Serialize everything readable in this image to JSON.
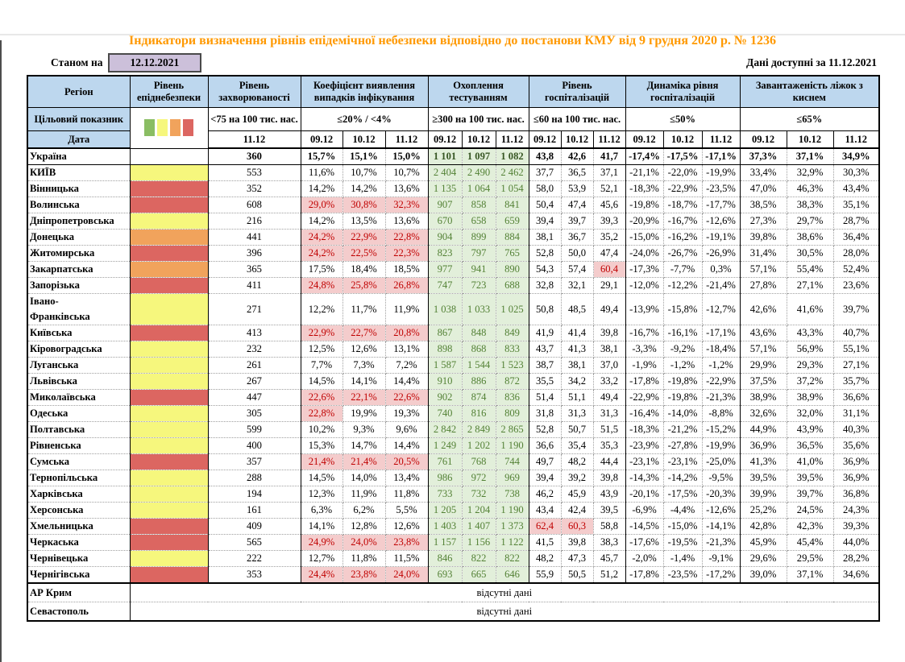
{
  "title": "Індикатори визначення рівнів епідемічної небезпеки відповідно до постанови КМУ від 9 грудня 2020 р. № 1236",
  "meta": {
    "stanom_label": "Станом на",
    "stanom_date": "12.12.2021",
    "available_label": "Дані доступні за 11.12.2021"
  },
  "header": {
    "region_label": "Регіон",
    "target_label": "Цільовий показник",
    "date_label": "Дата",
    "legend_colors": [
      "#8abd63",
      "#f6f77d",
      "#f1a35c",
      "#dc6661"
    ],
    "groups": [
      {
        "label": "Рівень епіднебезпеки",
        "target": "",
        "dates": []
      },
      {
        "label": "Рівень захворюваності",
        "target": "<75 на 100 тис. нас.",
        "dates": [
          "11.12"
        ]
      },
      {
        "label": "Коефіцієнт виявлення випадків інфікування",
        "target": "≤20% / <4%",
        "dates": [
          "09.12",
          "10.12",
          "11.12"
        ]
      },
      {
        "label": "Охоплення тестуванням",
        "target": "≥300 на 100 тис. нас.",
        "dates": [
          "09.12",
          "10.12",
          "11.12"
        ]
      },
      {
        "label": "Рівень госпіталізацій",
        "target": "≤60 на 100 тис. нас.",
        "dates": [
          "09.12",
          "10.12",
          "11.12"
        ]
      },
      {
        "label": "Динаміка рівня госпіталізацій",
        "target": "≤50%",
        "dates": [
          "09.12",
          "10.12",
          "11.12"
        ]
      },
      {
        "label": "Завантаженість ліжок з киснем",
        "target": "≤65%",
        "dates": [
          "09.12",
          "10.12",
          "11.12"
        ]
      }
    ]
  },
  "table": {
    "risk_colors": {
      "yellow": "#f6f77d",
      "orange": "#f1a35c",
      "red": "#dc6661"
    },
    "alert_bg": "#f4cccc",
    "alert_text": "#c00000",
    "ok_bg": "#e2efda",
    "ok_text": "#538135",
    "header_bg": "#bdd7ee",
    "rows": [
      {
        "name": "Україна",
        "bold": true,
        "risk": "none",
        "inc": "360",
        "det": [
          "15,7%",
          "15,1%",
          "15,0%"
        ],
        "test": [
          "1 101",
          "1 097",
          "1 082"
        ],
        "hosp": [
          "43,8",
          "42,6",
          "41,7"
        ],
        "dyn": [
          "-17,4%",
          "-17,5%",
          "-17,1%"
        ],
        "beds": [
          "37,3%",
          "37,1%",
          "34,9%"
        ]
      },
      {
        "name": "КИЇВ",
        "risk": "yellow",
        "inc": "553",
        "det": [
          "11,6%",
          "10,7%",
          "10,7%"
        ],
        "test": [
          "2 404",
          "2 490",
          "2 462"
        ],
        "hosp": [
          "37,7",
          "36,5",
          "37,1"
        ],
        "dyn": [
          "-21,1%",
          "-22,0%",
          "-19,9%"
        ],
        "beds": [
          "33,4%",
          "32,9%",
          "30,3%"
        ]
      },
      {
        "name": "Вінницька",
        "risk": "red",
        "inc": "352",
        "det": [
          "14,2%",
          "14,2%",
          "13,6%"
        ],
        "test": [
          "1 135",
          "1 064",
          "1 054"
        ],
        "hosp": [
          "58,0",
          "53,9",
          "52,1"
        ],
        "dyn": [
          "-18,3%",
          "-22,9%",
          "-23,5%"
        ],
        "beds": [
          "47,0%",
          "46,3%",
          "43,4%"
        ]
      },
      {
        "name": "Волинська",
        "risk": "red",
        "inc": "608",
        "det": [
          "29,0%",
          "30,8%",
          "32,3%"
        ],
        "detA": [
          1,
          1,
          1
        ],
        "test": [
          "907",
          "858",
          "841"
        ],
        "hosp": [
          "50,4",
          "47,4",
          "45,6"
        ],
        "dyn": [
          "-19,8%",
          "-18,7%",
          "-17,7%"
        ],
        "beds": [
          "38,5%",
          "38,3%",
          "35,1%"
        ]
      },
      {
        "name": "Дніпропетровська",
        "risk": "yellow",
        "inc": "216",
        "det": [
          "14,2%",
          "13,5%",
          "13,6%"
        ],
        "test": [
          "670",
          "658",
          "659"
        ],
        "hosp": [
          "39,4",
          "39,7",
          "39,3"
        ],
        "dyn": [
          "-20,9%",
          "-16,7%",
          "-12,6%"
        ],
        "beds": [
          "27,3%",
          "29,7%",
          "28,7%"
        ]
      },
      {
        "name": "Донецька",
        "risk": "orange",
        "inc": "441",
        "det": [
          "24,2%",
          "22,9%",
          "22,8%"
        ],
        "detA": [
          1,
          1,
          1
        ],
        "test": [
          "904",
          "899",
          "884"
        ],
        "hosp": [
          "38,1",
          "36,7",
          "35,2"
        ],
        "dyn": [
          "-15,0%",
          "-16,2%",
          "-19,1%"
        ],
        "beds": [
          "39,8%",
          "38,6%",
          "36,4%"
        ]
      },
      {
        "name": "Житомирська",
        "risk": "red",
        "inc": "396",
        "det": [
          "24,2%",
          "22,5%",
          "22,3%"
        ],
        "detA": [
          1,
          1,
          1
        ],
        "test": [
          "823",
          "797",
          "765"
        ],
        "hosp": [
          "52,8",
          "50,0",
          "47,4"
        ],
        "dyn": [
          "-24,0%",
          "-26,7%",
          "-26,9%"
        ],
        "beds": [
          "31,4%",
          "30,5%",
          "28,0%"
        ]
      },
      {
        "name": "Закарпатська",
        "risk": "orange",
        "inc": "365",
        "det": [
          "17,5%",
          "18,4%",
          "18,5%"
        ],
        "test": [
          "977",
          "941",
          "890"
        ],
        "hosp": [
          "54,3",
          "57,4",
          "60,4"
        ],
        "hospA": [
          0,
          0,
          1
        ],
        "dyn": [
          "-17,3%",
          "-7,7%",
          "0,3%"
        ],
        "beds": [
          "57,1%",
          "55,4%",
          "52,4%"
        ]
      },
      {
        "name": "Запорізька",
        "risk": "red",
        "inc": "411",
        "det": [
          "24,8%",
          "25,8%",
          "26,8%"
        ],
        "detA": [
          1,
          1,
          1
        ],
        "test": [
          "747",
          "723",
          "688"
        ],
        "hosp": [
          "32,8",
          "32,1",
          "29,1"
        ],
        "dyn": [
          "-12,0%",
          "-12,2%",
          "-21,4%"
        ],
        "beds": [
          "27,8%",
          "27,1%",
          "23,6%"
        ]
      },
      {
        "name": "Івано-\nФранківська",
        "risk": "yellow",
        "inc": "271",
        "det": [
          "12,2%",
          "11,7%",
          "11,9%"
        ],
        "test": [
          "1 038",
          "1 033",
          "1 025"
        ],
        "hosp": [
          "50,8",
          "48,5",
          "49,4"
        ],
        "dyn": [
          "-13,9%",
          "-15,8%",
          "-12,7%"
        ],
        "beds": [
          "42,6%",
          "41,6%",
          "39,7%"
        ]
      },
      {
        "name": "Київська",
        "risk": "red",
        "inc": "413",
        "det": [
          "22,9%",
          "22,7%",
          "20,8%"
        ],
        "detA": [
          1,
          1,
          1
        ],
        "test": [
          "867",
          "848",
          "849"
        ],
        "hosp": [
          "41,9",
          "41,4",
          "39,8"
        ],
        "dyn": [
          "-16,7%",
          "-16,1%",
          "-17,1%"
        ],
        "beds": [
          "43,6%",
          "43,3%",
          "40,7%"
        ]
      },
      {
        "name": "Кіровоградська",
        "risk": "yellow",
        "inc": "232",
        "det": [
          "12,5%",
          "12,6%",
          "13,1%"
        ],
        "test": [
          "898",
          "868",
          "833"
        ],
        "hosp": [
          "43,7",
          "41,3",
          "38,1"
        ],
        "dyn": [
          "-3,3%",
          "-9,2%",
          "-18,4%"
        ],
        "beds": [
          "57,1%",
          "56,9%",
          "55,1%"
        ]
      },
      {
        "name": "Луганська",
        "risk": "yellow",
        "inc": "261",
        "det": [
          "7,7%",
          "7,3%",
          "7,2%"
        ],
        "test": [
          "1 587",
          "1 544",
          "1 523"
        ],
        "hosp": [
          "38,7",
          "38,1",
          "37,0"
        ],
        "dyn": [
          "-1,9%",
          "-1,2%",
          "-1,2%"
        ],
        "beds": [
          "29,9%",
          "29,3%",
          "27,1%"
        ]
      },
      {
        "name": "Львівська",
        "risk": "yellow",
        "inc": "267",
        "det": [
          "14,5%",
          "14,1%",
          "14,4%"
        ],
        "test": [
          "910",
          "886",
          "872"
        ],
        "hosp": [
          "35,5",
          "34,2",
          "33,2"
        ],
        "dyn": [
          "-17,8%",
          "-19,8%",
          "-22,9%"
        ],
        "beds": [
          "37,5%",
          "37,2%",
          "35,7%"
        ]
      },
      {
        "name": "Миколаївська",
        "risk": "red",
        "inc": "447",
        "det": [
          "22,6%",
          "22,1%",
          "22,6%"
        ],
        "detA": [
          1,
          1,
          1
        ],
        "test": [
          "902",
          "874",
          "836"
        ],
        "hosp": [
          "51,4",
          "51,1",
          "49,4"
        ],
        "dyn": [
          "-22,9%",
          "-19,8%",
          "-21,3%"
        ],
        "beds": [
          "38,9%",
          "38,9%",
          "36,6%"
        ]
      },
      {
        "name": "Одеська",
        "risk": "yellow",
        "inc": "305",
        "det": [
          "22,8%",
          "19,9%",
          "19,3%"
        ],
        "detA": [
          1,
          0,
          0
        ],
        "test": [
          "740",
          "816",
          "809"
        ],
        "hosp": [
          "31,8",
          "31,3",
          "31,3"
        ],
        "dyn": [
          "-16,4%",
          "-14,0%",
          "-8,8%"
        ],
        "beds": [
          "32,6%",
          "32,0%",
          "31,1%"
        ]
      },
      {
        "name": "Полтавська",
        "risk": "yellow",
        "inc": "599",
        "det": [
          "10,2%",
          "9,3%",
          "9,6%"
        ],
        "test": [
          "2 842",
          "2 849",
          "2 865"
        ],
        "hosp": [
          "52,8",
          "50,7",
          "51,5"
        ],
        "dyn": [
          "-18,3%",
          "-21,2%",
          "-15,2%"
        ],
        "beds": [
          "44,9%",
          "43,9%",
          "40,3%"
        ]
      },
      {
        "name": "Рівненська",
        "risk": "yellow",
        "inc": "400",
        "det": [
          "15,3%",
          "14,7%",
          "14,4%"
        ],
        "test": [
          "1 249",
          "1 202",
          "1 190"
        ],
        "hosp": [
          "36,6",
          "35,4",
          "35,3"
        ],
        "dyn": [
          "-23,9%",
          "-27,8%",
          "-19,9%"
        ],
        "beds": [
          "36,9%",
          "36,5%",
          "35,6%"
        ]
      },
      {
        "name": "Сумська",
        "risk": "red",
        "inc": "357",
        "det": [
          "21,4%",
          "21,4%",
          "20,5%"
        ],
        "detA": [
          1,
          1,
          1
        ],
        "test": [
          "761",
          "768",
          "744"
        ],
        "hosp": [
          "49,7",
          "48,2",
          "44,4"
        ],
        "dyn": [
          "-23,1%",
          "-23,1%",
          "-25,0%"
        ],
        "beds": [
          "41,3%",
          "41,0%",
          "36,9%"
        ]
      },
      {
        "name": "Тернопільська",
        "risk": "yellow",
        "inc": "288",
        "det": [
          "14,5%",
          "14,0%",
          "13,4%"
        ],
        "test": [
          "986",
          "972",
          "969"
        ],
        "hosp": [
          "39,4",
          "39,2",
          "39,8"
        ],
        "dyn": [
          "-14,3%",
          "-14,2%",
          "-9,5%"
        ],
        "beds": [
          "39,5%",
          "39,5%",
          "36,9%"
        ]
      },
      {
        "name": "Харківська",
        "risk": "yellow",
        "inc": "194",
        "det": [
          "12,3%",
          "11,9%",
          "11,8%"
        ],
        "test": [
          "733",
          "732",
          "738"
        ],
        "hosp": [
          "46,2",
          "45,9",
          "43,9"
        ],
        "dyn": [
          "-20,1%",
          "-17,5%",
          "-20,3%"
        ],
        "beds": [
          "39,9%",
          "39,7%",
          "36,8%"
        ]
      },
      {
        "name": "Херсонська",
        "risk": "yellow",
        "inc": "161",
        "det": [
          "6,3%",
          "6,2%",
          "5,5%"
        ],
        "test": [
          "1 205",
          "1 204",
          "1 190"
        ],
        "hosp": [
          "43,4",
          "42,4",
          "39,5"
        ],
        "dyn": [
          "-6,9%",
          "-4,4%",
          "-12,6%"
        ],
        "beds": [
          "25,2%",
          "24,5%",
          "24,3%"
        ]
      },
      {
        "name": "Хмельницька",
        "risk": "red",
        "inc": "409",
        "det": [
          "14,1%",
          "12,8%",
          "12,6%"
        ],
        "test": [
          "1 403",
          "1 407",
          "1 373"
        ],
        "hosp": [
          "62,4",
          "60,3",
          "58,8"
        ],
        "hospA": [
          1,
          1,
          0
        ],
        "dyn": [
          "-14,5%",
          "-15,0%",
          "-14,1%"
        ],
        "beds": [
          "42,8%",
          "42,3%",
          "39,3%"
        ]
      },
      {
        "name": "Черкаська",
        "risk": "red",
        "inc": "565",
        "det": [
          "24,9%",
          "24,0%",
          "23,8%"
        ],
        "detA": [
          1,
          1,
          1
        ],
        "test": [
          "1 157",
          "1 156",
          "1 122"
        ],
        "hosp": [
          "41,5",
          "39,8",
          "38,3"
        ],
        "dyn": [
          "-17,6%",
          "-19,5%",
          "-21,3%"
        ],
        "beds": [
          "45,9%",
          "45,4%",
          "44,0%"
        ]
      },
      {
        "name": "Чернівецька",
        "risk": "yellow",
        "inc": "222",
        "det": [
          "12,7%",
          "11,8%",
          "11,5%"
        ],
        "test": [
          "846",
          "822",
          "822"
        ],
        "hosp": [
          "48,2",
          "47,3",
          "45,7"
        ],
        "dyn": [
          "-2,0%",
          "-1,4%",
          "-9,1%"
        ],
        "beds": [
          "29,6%",
          "29,5%",
          "28,2%"
        ]
      },
      {
        "name": "Чернігівська",
        "risk": "red",
        "inc": "353",
        "det": [
          "24,4%",
          "23,8%",
          "24,0%"
        ],
        "detA": [
          1,
          1,
          1
        ],
        "test": [
          "693",
          "665",
          "646"
        ],
        "hosp": [
          "55,9",
          "50,5",
          "51,2"
        ],
        "dyn": [
          "-17,8%",
          "-23,5%",
          "-17,2%"
        ],
        "beds": [
          "39,0%",
          "37,1%",
          "34,6%"
        ]
      }
    ],
    "no_data_rows": [
      {
        "name": "АР Крим",
        "text": "відсутні дані"
      },
      {
        "name": "Севастополь",
        "text": "відсутні дані"
      }
    ]
  }
}
